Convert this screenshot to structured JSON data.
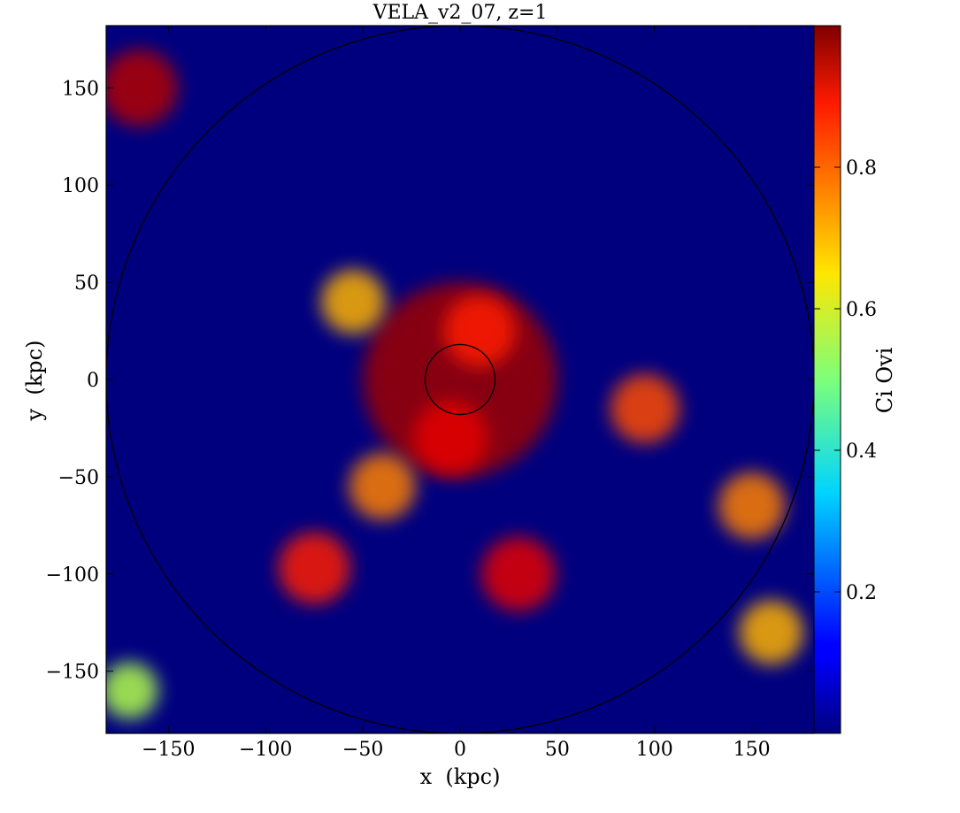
{
  "chart_data": {
    "type": "heatmap",
    "title": "VELA_v2_07, z=1",
    "xlabel": "x  (kpc)",
    "ylabel": "y  (kpc)",
    "xlim": [
      -182,
      182
    ],
    "ylim": [
      -182,
      182
    ],
    "xticks": [
      -150,
      -100,
      -50,
      0,
      50,
      100,
      150
    ],
    "yticks": [
      -150,
      -100,
      -50,
      0,
      50,
      100,
      150
    ],
    "xtick_labels": [
      "−150",
      "−100",
      "−50",
      "0",
      "50",
      "100",
      "150"
    ],
    "ytick_labels": [
      "−150",
      "−100",
      "−50",
      "0",
      "50",
      "100",
      "150"
    ],
    "colorbar": {
      "label": "Ci Ovi",
      "range": [
        0.0,
        1.0
      ],
      "ticks": [
        0.2,
        0.4,
        0.6,
        0.8
      ],
      "tick_labels": [
        "0.2",
        "0.4",
        "0.6",
        "0.8"
      ],
      "colormap": "jet"
    },
    "circles": [
      {
        "cx": 0,
        "cy": 0,
        "r": 182,
        "color": "#000000"
      },
      {
        "cx": 0,
        "cy": 0,
        "r": 18,
        "color": "#000000"
      }
    ],
    "features": [
      {
        "x": 0,
        "y": 0,
        "value": 0.97
      },
      {
        "x": -5,
        "y": -30,
        "value": 0.9
      },
      {
        "x": 10,
        "y": 25,
        "value": 0.85
      },
      {
        "x": -40,
        "y": -55,
        "value": 0.75
      },
      {
        "x": -55,
        "y": 40,
        "value": 0.7
      },
      {
        "x": 95,
        "y": -15,
        "value": 0.8
      },
      {
        "x": -165,
        "y": 150,
        "value": 0.95
      },
      {
        "x": 160,
        "y": -130,
        "value": 0.7
      },
      {
        "x": 30,
        "y": -100,
        "value": 0.9
      },
      {
        "x": -75,
        "y": -97,
        "value": 0.85
      },
      {
        "x": 150,
        "y": -65,
        "value": 0.75
      },
      {
        "x": -170,
        "y": -160,
        "value": 0.55
      }
    ],
    "grid": false
  },
  "colors": {
    "background": "#00007f",
    "frame": "#000000"
  }
}
